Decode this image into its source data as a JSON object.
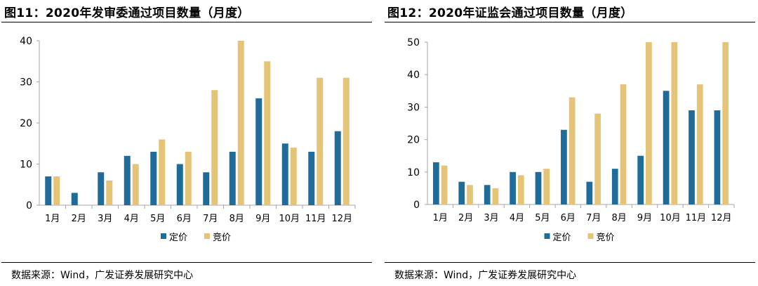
{
  "chart_data": [
    {
      "type": "bar",
      "title": "图11：2020年发审委通过项目数量（月度）",
      "categories": [
        "1月",
        "2月",
        "3月",
        "4月",
        "5月",
        "6月",
        "7月",
        "8月",
        "9月",
        "10月",
        "11月",
        "12月"
      ],
      "series": [
        {
          "name": "定价",
          "color": "#1f6b99",
          "values": [
            7,
            3,
            8,
            12,
            13,
            10,
            8,
            13,
            26,
            15,
            13,
            18
          ]
        },
        {
          "name": "竞价",
          "color": "#e6c477",
          "values": [
            7,
            0,
            6,
            10,
            16,
            13,
            28,
            40,
            35,
            14,
            31,
            31
          ]
        }
      ],
      "ylim": [
        0,
        40
      ],
      "yticks": [
        0,
        10,
        20,
        30,
        40
      ],
      "legend": "bottom-center",
      "grid": false,
      "source": "数据来源：Wind，广发证券发展研究中心"
    },
    {
      "type": "bar",
      "title": "图12：2020年证监会通过项目数量（月度）",
      "categories": [
        "1月",
        "2月",
        "3月",
        "4月",
        "5月",
        "6月",
        "7月",
        "8月",
        "9月",
        "10月",
        "11月",
        "12月"
      ],
      "series": [
        {
          "name": "定价",
          "color": "#1f6b99",
          "values": [
            13,
            7,
            6,
            10,
            10,
            23,
            7,
            11,
            15,
            35,
            29,
            29
          ]
        },
        {
          "name": "竞价",
          "color": "#e6c477",
          "values": [
            12,
            6,
            5,
            9,
            11,
            33,
            28,
            37,
            50,
            50,
            37,
            50
          ]
        }
      ],
      "ylim": [
        0,
        50
      ],
      "yticks": [
        0,
        10,
        20,
        30,
        40,
        50
      ],
      "legend": "bottom-center",
      "grid": false,
      "source": "数据来源：Wind，广发证券发展研究中心"
    }
  ]
}
